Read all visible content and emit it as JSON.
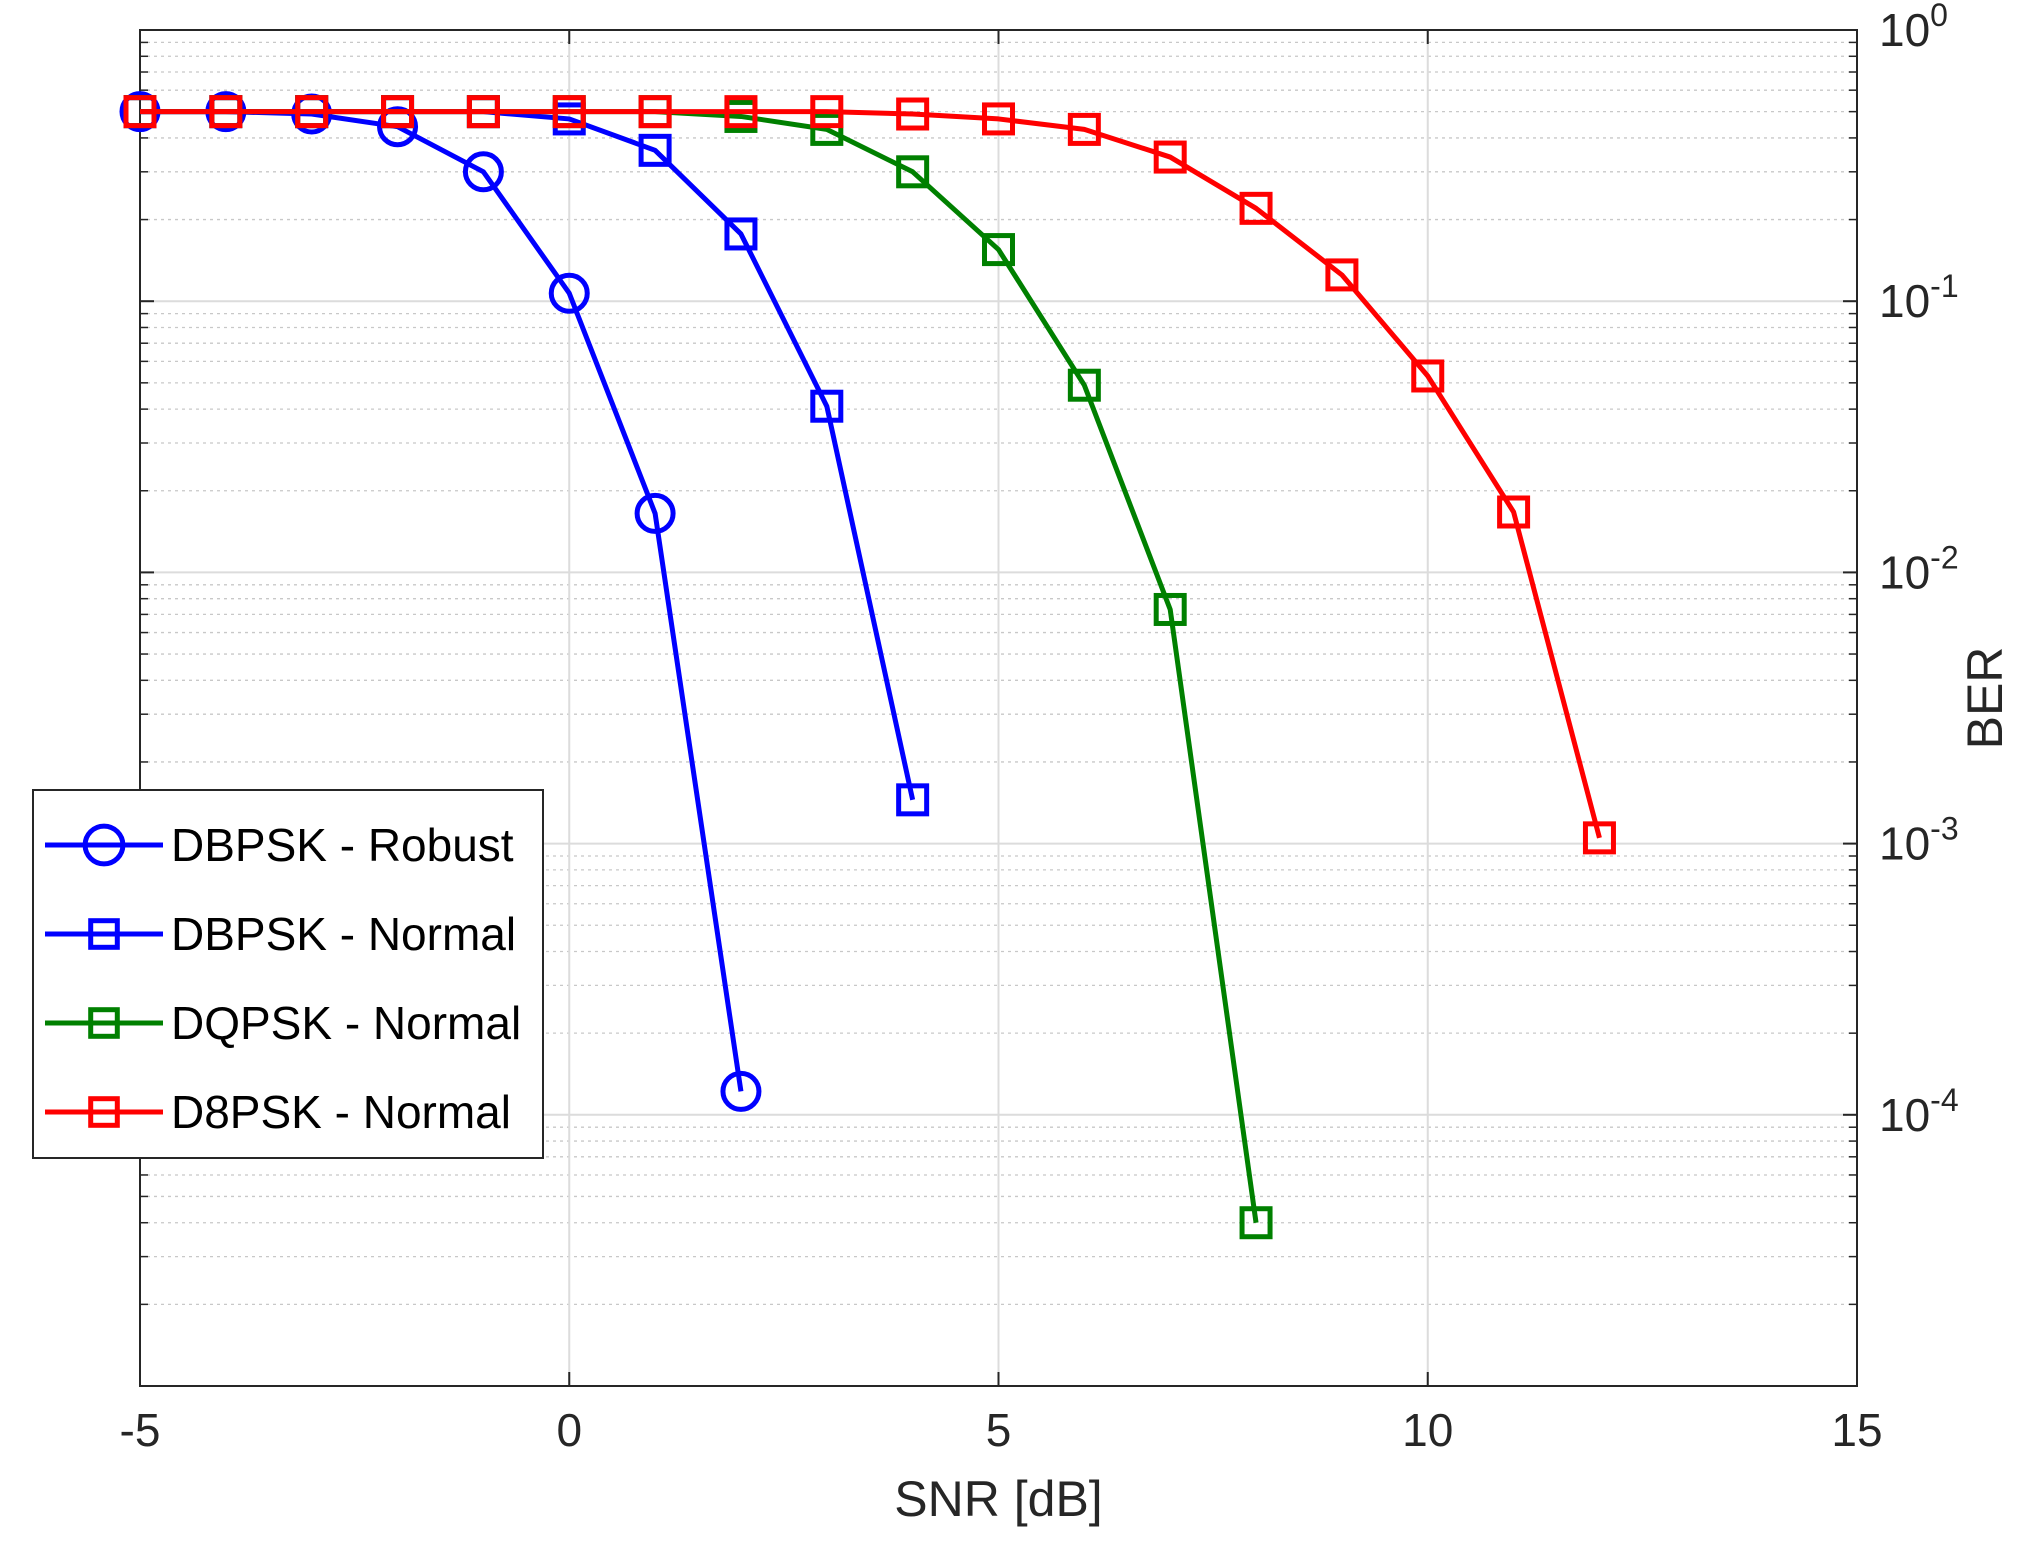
{
  "chart_data": {
    "type": "line",
    "xlabel": "SNR [dB]",
    "ylabel": "BER",
    "xlim": [
      -5,
      15
    ],
    "ylim": [
      1e-05,
      1
    ],
    "yscale": "log",
    "x_ticks": [
      -5,
      0,
      5,
      10,
      15
    ],
    "x_tick_labels": [
      "-5",
      "0",
      "5",
      "10",
      "15"
    ],
    "y_ticks": [
      1,
      0.1,
      0.01,
      0.001,
      0.0001
    ],
    "y_tick_labels": [
      {
        "base": "10",
        "exp": "0"
      },
      {
        "base": "10",
        "exp": "-1"
      },
      {
        "base": "10",
        "exp": "-2"
      },
      {
        "base": "10",
        "exp": "-3"
      },
      {
        "base": "10",
        "exp": "-4"
      }
    ],
    "grid": true,
    "minor_grid": true,
    "y_axis_side": "right",
    "legend_position": "left",
    "series": [
      {
        "name": "DBPSK - Robust",
        "color": "#0000ff",
        "marker": "circle",
        "x": [
          -5,
          -4,
          -3,
          -2,
          -1,
          0,
          1,
          2
        ],
        "y": [
          0.5,
          0.5,
          0.49,
          0.44,
          0.3,
          0.107,
          0.0165,
          0.000122
        ]
      },
      {
        "name": "DBPSK - Normal",
        "color": "#0000ff",
        "marker": "square",
        "x": [
          -5,
          -4,
          -3,
          -2,
          -1,
          0,
          1,
          2,
          3,
          4
        ],
        "y": [
          0.5,
          0.5,
          0.5,
          0.5,
          0.5,
          0.47,
          0.36,
          0.177,
          0.041,
          0.00145
        ]
      },
      {
        "name": "DQPSK - Normal",
        "color": "#008000",
        "marker": "square",
        "x": [
          -5,
          -4,
          -3,
          -2,
          -1,
          0,
          1,
          2,
          3,
          4,
          5,
          6,
          7,
          8
        ],
        "y": [
          0.5,
          0.5,
          0.5,
          0.5,
          0.5,
          0.5,
          0.5,
          0.48,
          0.43,
          0.3,
          0.155,
          0.049,
          0.0073,
          4e-05
        ]
      },
      {
        "name": "D8PSK - Normal",
        "color": "#ff0000",
        "marker": "square",
        "x": [
          -5,
          -4,
          -3,
          -2,
          -1,
          0,
          1,
          2,
          3,
          4,
          5,
          6,
          7,
          8,
          9,
          10,
          11,
          12
        ],
        "y": [
          0.5,
          0.5,
          0.5,
          0.5,
          0.5,
          0.5,
          0.5,
          0.5,
          0.5,
          0.49,
          0.47,
          0.43,
          0.34,
          0.22,
          0.125,
          0.053,
          0.0167,
          0.00105
        ]
      }
    ]
  }
}
